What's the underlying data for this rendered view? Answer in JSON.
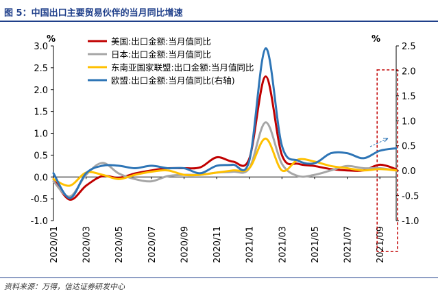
{
  "figure": {
    "title": "图 5：中国出口主要贸易伙伴的当月同比增速",
    "source": "资料来源：万得，信达证券研发中心"
  },
  "chart_data": {
    "type": "line",
    "x": [
      "2020/01",
      "2020/02",
      "2020/03",
      "2020/04",
      "2020/05",
      "2020/06",
      "2020/07",
      "2020/08",
      "2020/09",
      "2020/10",
      "2020/11",
      "2020/12",
      "2021/01",
      "2021/02",
      "2021/03",
      "2021/04",
      "2021/05",
      "2021/06",
      "2021/07",
      "2021/08",
      "2021/09",
      "2021/10"
    ],
    "x_tick_labels": [
      "2020/01",
      "2020/03",
      "2020/05",
      "2020/07",
      "2020/09",
      "2020/11",
      "2021/01",
      "2021/03",
      "2021/05",
      "2021/07",
      "2021/09"
    ],
    "y_left": {
      "unit": "%",
      "lim": [
        -1.0,
        3.0
      ],
      "ticks": [
        "-1.0",
        "-0.5",
        "0.0",
        "0.5",
        "1.0",
        "1.5",
        "2.0",
        "2.5",
        "3.0"
      ]
    },
    "y_right": {
      "unit": "%",
      "lim": [
        -1.0,
        2.5
      ],
      "ticks": [
        "-1.0",
        "-0.5",
        "0.0",
        "0.5",
        "1.0",
        "1.5",
        "2.0",
        "2.5"
      ]
    },
    "legend_position": "top-left",
    "series": [
      {
        "name": "美国:出口金额:当月值同比",
        "axis": "left",
        "color": "#c00000",
        "values": [
          -0.05,
          -0.52,
          -0.2,
          0.02,
          -0.02,
          0.08,
          0.15,
          0.2,
          0.2,
          0.22,
          0.45,
          0.35,
          0.42,
          2.3,
          0.5,
          0.3,
          0.25,
          0.18,
          0.15,
          0.15,
          0.28,
          0.18
        ]
      },
      {
        "name": "日本:出口金额:当月值同比",
        "axis": "left",
        "color": "#a6a6a6",
        "values": [
          -0.1,
          -0.45,
          0.05,
          0.32,
          0.08,
          -0.05,
          -0.1,
          0.02,
          0.05,
          0.05,
          0.1,
          0.12,
          0.2,
          1.25,
          0.3,
          0.02,
          0.05,
          0.15,
          0.25,
          0.2,
          0.2,
          0.15
        ]
      },
      {
        "name": "东南亚国家联盟:出口金额:当月值同比",
        "axis": "left",
        "color": "#ffc000",
        "values": [
          -0.05,
          -0.2,
          0.1,
          0.05,
          -0.05,
          0.05,
          0.12,
          0.15,
          0.05,
          0.05,
          0.1,
          0.15,
          0.2,
          0.88,
          0.15,
          0.4,
          0.35,
          0.25,
          0.2,
          0.15,
          0.18,
          0.15
        ]
      },
      {
        "name": "欧盟:出口金额:当月值同比(右轴)",
        "axis": "right",
        "color": "#2e75b6",
        "values": [
          -0.05,
          -0.55,
          -0.05,
          0.1,
          0.1,
          0.05,
          0.1,
          0.05,
          0.05,
          -0.05,
          0.1,
          0.12,
          0.2,
          2.45,
          0.5,
          0.2,
          0.15,
          0.35,
          0.35,
          0.25,
          0.4,
          0.45
        ]
      }
    ],
    "annotation": {
      "type": "dashed-box",
      "color": "#c00000",
      "covers": "2021/09-2021/10"
    }
  }
}
